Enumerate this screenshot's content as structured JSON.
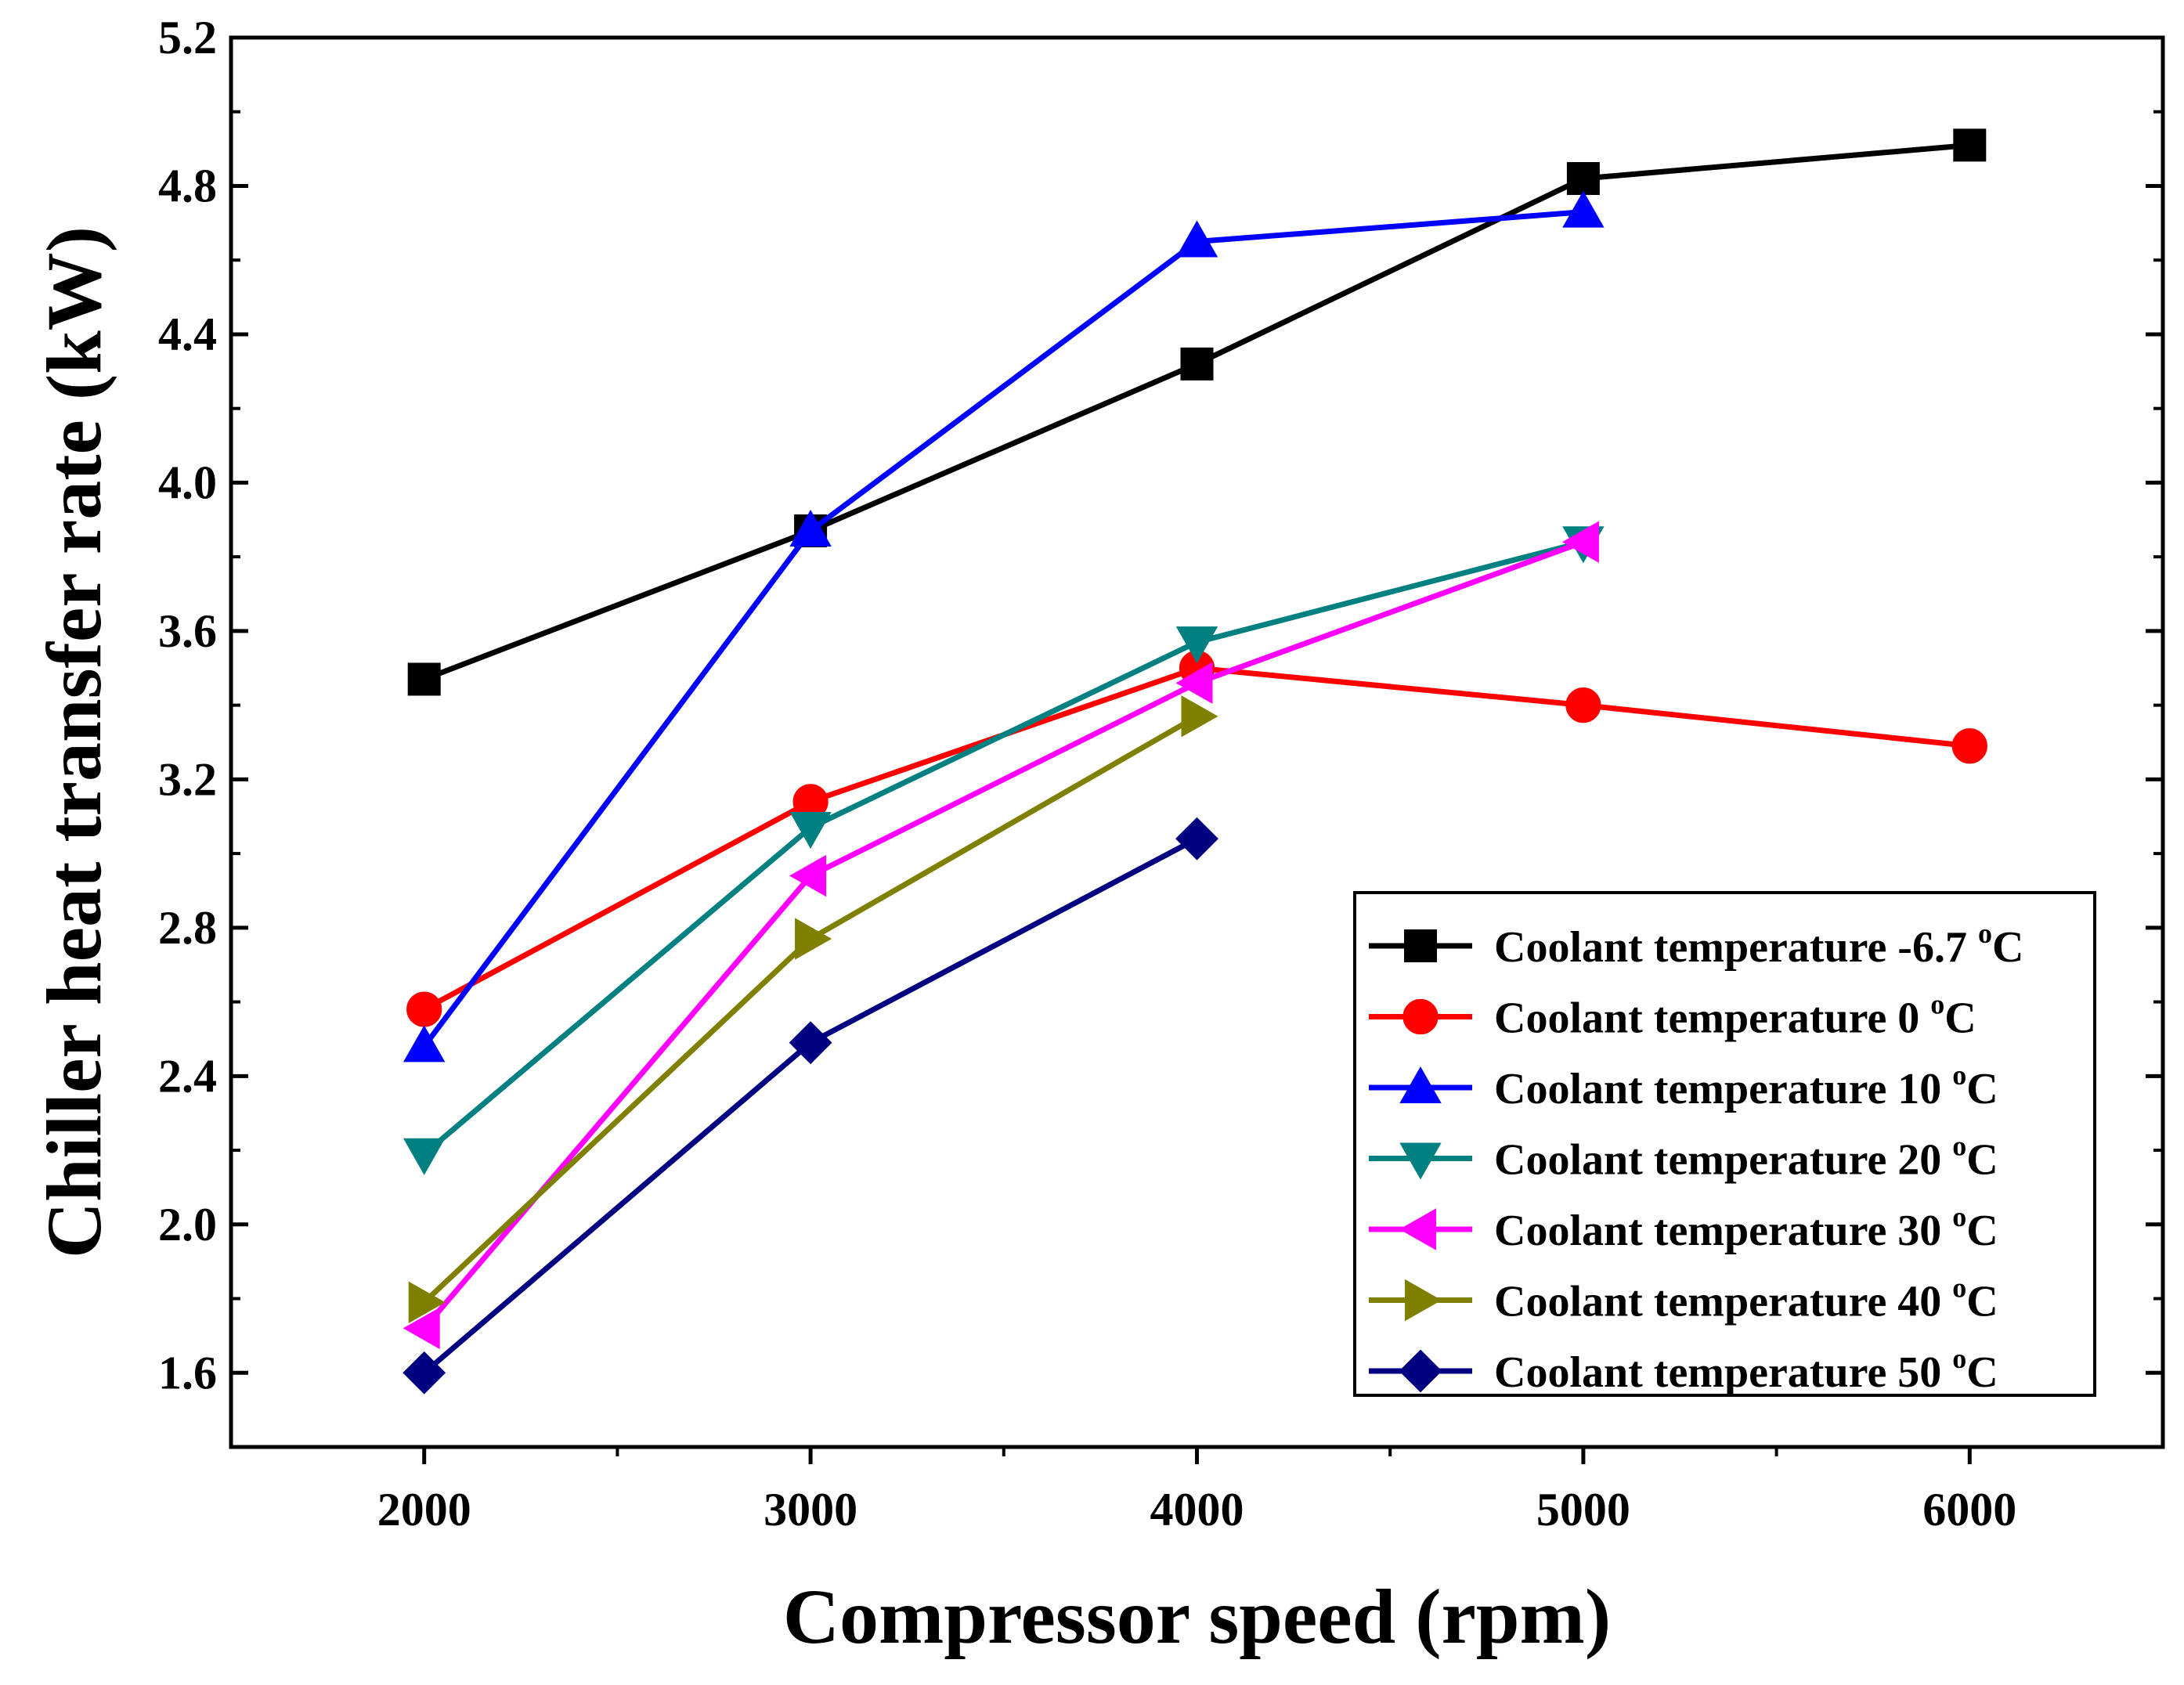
{
  "chart_data": {
    "type": "line",
    "title": "",
    "xlabel": "Compressor speed (rpm)",
    "ylabel": "Chiller heat transfer rate (kW)",
    "xlim": [
      1500,
      6500
    ],
    "ylim": [
      1.4,
      5.2
    ],
    "xticks": [
      "2000",
      "3000",
      "4000",
      "5000",
      "6000"
    ],
    "yticks": [
      "1.6",
      "2.0",
      "2.4",
      "2.8",
      "3.2",
      "3.6",
      "4.0",
      "4.4",
      "4.8",
      "5.2"
    ],
    "grid": false,
    "legend_position": "bottom-right",
    "series": [
      {
        "name": "Coolant temperature -6.7 °C",
        "label_main": "Coolant temperature -6.7 ",
        "label_sup": "o",
        "label_unit": "C",
        "color": "#000000",
        "marker": "square",
        "x": [
          2000,
          3000,
          4000,
          5000,
          6000
        ],
        "values": [
          3.47,
          3.87,
          4.32,
          4.82,
          4.91
        ]
      },
      {
        "name": "Coolant temperature 0 °C",
        "label_main": "Coolant temperature 0 ",
        "label_sup": "o",
        "label_unit": "C",
        "color": "#ff0000",
        "marker": "circle",
        "x": [
          2000,
          3000,
          4000,
          5000,
          6000
        ],
        "values": [
          2.58,
          3.14,
          3.5,
          3.4,
          3.29
        ]
      },
      {
        "name": "Coolant temperature 10 °C",
        "label_main": "Coolant temperature 10 ",
        "label_sup": "o",
        "label_unit": "C",
        "color": "#0000ff",
        "marker": "triangle-up",
        "x": [
          2000,
          3000,
          4000,
          5000
        ],
        "values": [
          2.48,
          3.87,
          4.65,
          4.73
        ]
      },
      {
        "name": "Coolant temperature 20 °C",
        "label_main": "Coolant temperature 20 ",
        "label_sup": "o",
        "label_unit": "C",
        "color": "#008080",
        "marker": "triangle-down",
        "x": [
          2000,
          3000,
          4000,
          5000
        ],
        "values": [
          2.19,
          3.07,
          3.57,
          3.84
        ]
      },
      {
        "name": "Coolant temperature 30 °C",
        "label_main": "Coolant temperature 30 ",
        "label_sup": "o",
        "label_unit": "C",
        "color": "#ff00ff",
        "marker": "triangle-left",
        "x": [
          2000,
          3000,
          4000,
          5000
        ],
        "values": [
          1.72,
          2.94,
          3.46,
          3.84
        ]
      },
      {
        "name": "Coolant temperature 40 °C",
        "label_main": "Coolant temperature 40 ",
        "label_sup": "o",
        "label_unit": "C",
        "color": "#808000",
        "marker": "triangle-right",
        "x": [
          2000,
          3000,
          4000
        ],
        "values": [
          1.79,
          2.77,
          3.37
        ]
      },
      {
        "name": "Coolant temperature 50 °C",
        "label_main": "Coolant temperature 50 ",
        "label_sup": "o",
        "label_unit": "C",
        "color": "#000080",
        "marker": "diamond",
        "x": [
          2000,
          3000,
          4000
        ],
        "values": [
          1.6,
          2.49,
          3.04
        ]
      }
    ]
  }
}
